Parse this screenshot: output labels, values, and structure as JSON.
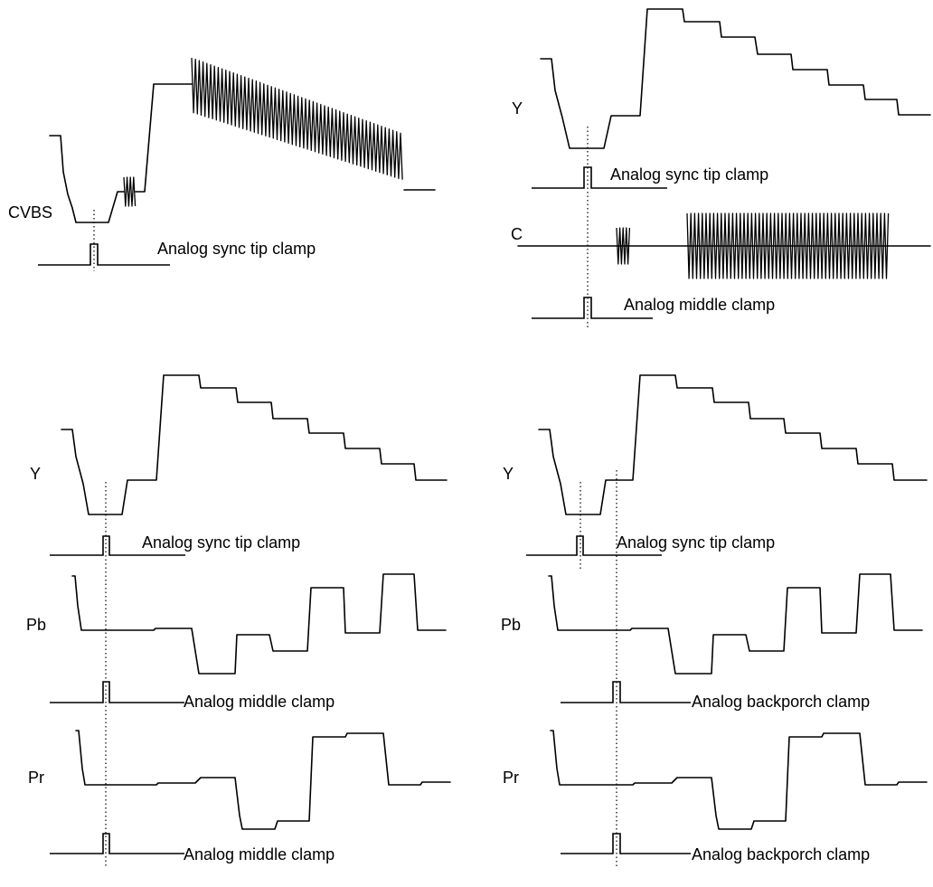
{
  "panels": {
    "cvbs": {
      "signal": "CVBS",
      "clamp": "Analog sync tip clamp"
    },
    "yc": {
      "y_signal": "Y",
      "y_clamp": "Analog sync tip clamp",
      "c_signal": "C",
      "c_clamp": "Analog middle clamp"
    },
    "ypbpr_middle": {
      "y_signal": "Y",
      "y_clamp": "Analog sync tip clamp",
      "pb_signal": "Pb",
      "pb_clamp": "Analog middle clamp",
      "pr_signal": "Pr",
      "pr_clamp": "Analog middle clamp"
    },
    "ypbpr_backporch": {
      "y_signal": "Y",
      "y_clamp": "Analog sync tip clamp",
      "pb_signal": "Pb",
      "pb_clamp": "Analog backporch clamp",
      "pr_signal": "Pr",
      "pr_clamp": "Analog backporch clamp"
    }
  },
  "colors": {
    "stroke": "#000000",
    "background": "#ffffff"
  }
}
